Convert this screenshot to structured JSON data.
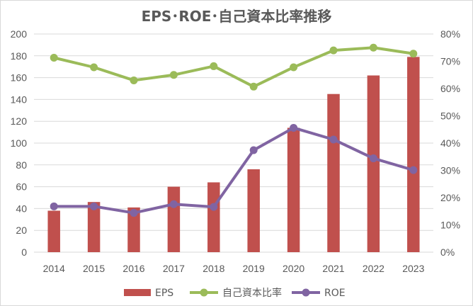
{
  "chart_data": {
    "type": "bar+line",
    "title": "EPS･ROE･自己資本比率推移",
    "categories": [
      "2014",
      "2015",
      "2016",
      "2017",
      "2018",
      "2019",
      "2020",
      "2021",
      "2022",
      "2023"
    ],
    "left_axis": {
      "ylim": [
        0,
        200
      ],
      "ticks": [
        "0",
        "20",
        "40",
        "60",
        "80",
        "100",
        "120",
        "140",
        "160",
        "180",
        "200"
      ]
    },
    "right_axis": {
      "ylim": [
        0,
        80
      ],
      "ticks": [
        "0%",
        "10%",
        "20%",
        "30%",
        "40%",
        "50%",
        "60%",
        "70%",
        "80%"
      ]
    },
    "grid": true,
    "legend_position": "bottom",
    "series": [
      {
        "name": "EPS",
        "kind": "bar",
        "axis": "left",
        "color": "#c0504d",
        "values": [
          38,
          46,
          41,
          60,
          64,
          76,
          114,
          145,
          162,
          179
        ]
      },
      {
        "name": "自己資本比率",
        "kind": "line",
        "axis": "right",
        "color": "#9bbb59",
        "values": [
          71.3,
          67.8,
          63.0,
          65.0,
          68.2,
          60.7,
          67.8,
          74.0,
          75.0,
          72.8
        ]
      },
      {
        "name": "ROE",
        "kind": "line",
        "axis": "right",
        "color": "#8064a2",
        "values": [
          16.8,
          16.8,
          14.4,
          17.6,
          16.6,
          37.4,
          45.6,
          41.3,
          34.4,
          30.1
        ]
      }
    ]
  }
}
